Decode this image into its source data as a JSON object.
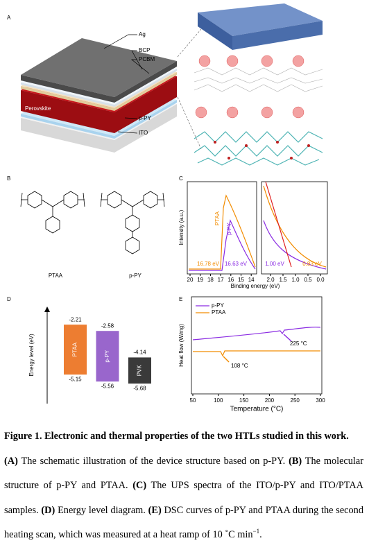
{
  "panel_a": {
    "label": "A",
    "layers": [
      "Ag",
      "BCP",
      "PCBM",
      "Perovskite",
      "p-PY",
      "ITO"
    ]
  },
  "panel_b": {
    "label": "B",
    "molecules": [
      "PTAA",
      "p-PY"
    ]
  },
  "panel_c": {
    "label": "C",
    "ylabel": "Intensity (a.u.)",
    "xlabel": "Binding energy (eV)",
    "xticks_left": [
      20,
      19,
      18,
      17,
      16,
      15,
      14
    ],
    "xticks_right": [
      {
        "value": 2,
        "label": "2.0"
      },
      1.5,
      {
        "value": 1,
        "label": "1.0"
      },
      0.5,
      {
        "value": 0,
        "label": "0.0"
      }
    ],
    "series_labels": [
      "PTAA",
      "p-PY"
    ],
    "annotations": [
      "16.78 eV",
      "16.63 eV",
      "1.00 eV",
      "0.83 eV"
    ]
  },
  "panel_d": {
    "label": "D",
    "ylabel": "Energy level (eV)",
    "bars": [
      {
        "name": "PTAA",
        "color": "#ed7d31",
        "top": -2.21,
        "bottom": -5.15
      },
      {
        "name": "p-PY",
        "color": "#9966cc",
        "top": -2.58,
        "bottom": -5.56
      },
      {
        "name": "PVK",
        "color": "#3a3a3a",
        "top": -4.14,
        "bottom": -5.68
      }
    ]
  },
  "panel_e": {
    "label": "E",
    "ylabel": "Heat flow (W/mg)",
    "xlabel": "Temperature (°C)",
    "xlim": [
      50,
      300
    ],
    "xticks": [
      50,
      100,
      150,
      200,
      250,
      300
    ],
    "series": [
      {
        "name": "p-PY",
        "color": "#8a2be2"
      },
      {
        "name": "PTAA",
        "color": "#f28c00"
      }
    ],
    "annotations": [
      "225 °C",
      "108 °C"
    ]
  },
  "caption": {
    "segments": [
      {
        "text": "Figure 1. Electronic and thermal properties of the two HTLs studied in this work.",
        "style": "bold"
      },
      {
        "text": "(A)",
        "style": "bold"
      },
      {
        "text": " The schematic illustration of the device structure based on p-PY. ",
        "style": "normal"
      },
      {
        "text": "(B)",
        "style": "bold"
      },
      {
        "text": " The molecular structure of p-PY and PTAA. ",
        "style": "normal"
      },
      {
        "text": "(C)",
        "style": "bold"
      },
      {
        "text": " The UPS spectra of the ITO/p-PY and ITO/PTAA samples. ",
        "style": "normal"
      },
      {
        "text": "(D)",
        "style": "bold"
      },
      {
        "text": " Energy level diagram. ",
        "style": "normal"
      },
      {
        "text": "(E)",
        "style": "bold"
      },
      {
        "text": " DSC curves of p-PY and PTAA during the second heating scan, which was measured at a heat ramp of 10 ˚C min",
        "style": "normal"
      },
      {
        "text": "−1",
        "style": "sup"
      },
      {
        "text": ".",
        "style": "normal"
      }
    ]
  }
}
